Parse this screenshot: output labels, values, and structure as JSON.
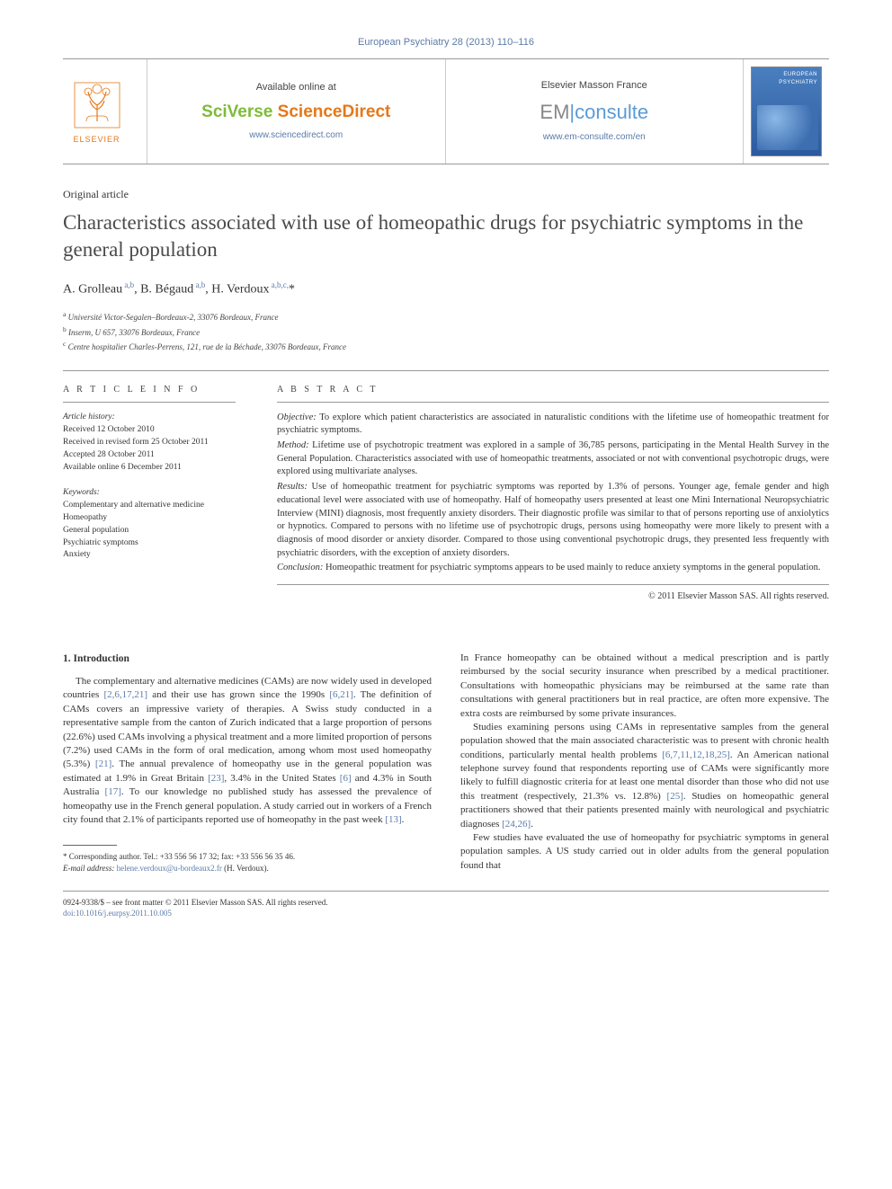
{
  "header": {
    "journal_citation": "European Psychiatry 28 (2013) 110–116"
  },
  "masthead": {
    "elsevier_label": "ELSEVIER",
    "left": {
      "avail": "Available online at",
      "brand_part1": "SciVerse ",
      "brand_part2": "ScienceDirect",
      "url": "www.sciencedirect.com"
    },
    "right": {
      "avail": "Elsevier Masson France",
      "brand_em": "EM",
      "brand_consulte": "consulte",
      "url": "www.em-consulte.com/en"
    },
    "cover_title": "EUROPEAN PSYCHIATRY"
  },
  "article": {
    "type": "Original article",
    "title": "Characteristics associated with use of homeopathic drugs for psychiatric symptoms in the general population",
    "authors_html": "A. Grolleau <sup>a,b</sup>, B. Bégaud <sup>a,b</sup>, H. Verdoux <sup>a,b,c,*</sup>",
    "affiliations": [
      "a Université Victor-Segalen–Bordeaux-2, 33076 Bordeaux, France",
      "b Inserm, U 657, 33076 Bordeaux, France",
      "c Centre hospitalier Charles-Perrens, 121, rue de la Béchade, 33076 Bordeaux, France"
    ]
  },
  "info": {
    "heading": "A R T I C L E   I N F O",
    "history_label": "Article history:",
    "history": [
      "Received 12 October 2010",
      "Received in revised form 25 October 2011",
      "Accepted 28 October 2011",
      "Available online 6 December 2011"
    ],
    "keywords_label": "Keywords:",
    "keywords": [
      "Complementary and alternative medicine",
      "Homeopathy",
      "General population",
      "Psychiatric symptoms",
      "Anxiety"
    ]
  },
  "abstract": {
    "heading": "A B S T R A C T",
    "sections": [
      {
        "label": "Objective:",
        "text": " To explore which patient characteristics are associated in naturalistic conditions with the lifetime use of homeopathic treatment for psychiatric symptoms."
      },
      {
        "label": "Method:",
        "text": " Lifetime use of psychotropic treatment was explored in a sample of 36,785 persons, participating in the Mental Health Survey in the General Population. Characteristics associated with use of homeopathic treatments, associated or not with conventional psychotropic drugs, were explored using multivariate analyses."
      },
      {
        "label": "Results:",
        "text": " Use of homeopathic treatment for psychiatric symptoms was reported by 1.3% of persons. Younger age, female gender and high educational level were associated with use of homeopathy. Half of homeopathy users presented at least one Mini International Neuropsychiatric Interview (MINI) diagnosis, most frequently anxiety disorders. Their diagnostic profile was similar to that of persons reporting use of anxiolytics or hypnotics. Compared to persons with no lifetime use of psychotropic drugs, persons using homeopathy were more likely to present with a diagnosis of mood disorder or anxiety disorder. Compared to those using conventional psychotropic drugs, they presented less frequently with psychiatric disorders, with the exception of anxiety disorders."
      },
      {
        "label": "Conclusion:",
        "text": " Homeopathic treatment for psychiatric symptoms appears to be used mainly to reduce anxiety symptoms in the general population."
      }
    ],
    "copyright": "© 2011 Elsevier Masson SAS. All rights reserved."
  },
  "body": {
    "section_heading": "1. Introduction",
    "col1": {
      "p1a": "The complementary and alternative medicines (CAMs) are now widely used in developed countries ",
      "p1a_ref": "[2,6,17,21]",
      "p1b": " and their use has grown since the 1990s ",
      "p1b_ref": "[6,21]",
      "p1c": ". The definition of CAMs covers an impressive variety of therapies. A Swiss study conducted in a representative sample from the canton of Zurich indicated that a large proportion of persons (22.6%) used CAMs involving a physical treatment and a more limited proportion of persons (7.2%) used CAMs in the form of oral medication, among whom most used homeopathy (5.3%) ",
      "p1c_ref": "[21]",
      "p1d": ". The annual prevalence of homeopathy use in the general population was estimated at 1.9% in Great Britain ",
      "p1d_ref": "[23]",
      "p1e": ", 3.4% in the United States ",
      "p1e_ref": "[6]",
      "p1f": " and 4.3% in South Australia ",
      "p1f_ref": "[17]",
      "p1g": ". To our knowledge no published study has assessed the prevalence of homeopathy use in the French general population. A study carried out in workers of a French city found that 2.1% of participants reported use of homeopathy in the past week ",
      "p1g_ref": "[13]",
      "p1h": "."
    },
    "col2": {
      "p1": "In France homeopathy can be obtained without a medical prescription and is partly reimbursed by the social security insurance when prescribed by a medical practitioner. Consultations with homeopathic physicians may be reimbursed at the same rate than consultations with general practitioners but in real practice, are often more expensive. The extra costs are reimbursed by some private insurances.",
      "p2a": "Studies examining persons using CAMs in representative samples from the general population showed that the main associated characteristic was to present with chronic health conditions, particularly mental health problems ",
      "p2a_ref": "[6,7,11,12,18,25]",
      "p2b": ". An American national telephone survey found that respondents reporting use of CAMs were significantly more likely to fulfill diagnostic criteria for at least one mental disorder than those who did not use this treatment (respectively, 21.3% vs. 12.8%) ",
      "p2b_ref": "[25]",
      "p2c": ". Studies on homeopathic general practitioners showed that their patients presented mainly with neurological and psychiatric diagnoses ",
      "p2c_ref": "[24,26]",
      "p2d": ".",
      "p3": "Few studies have evaluated the use of homeopathy for psychiatric symptoms in general population samples. A US study carried out in older adults from the general population found that"
    }
  },
  "footnote": {
    "corr": "* Corresponding author. Tel.: +33 556 56 17 32; fax: +33 556 56 35 46.",
    "email_label": "E-mail address:",
    "email": "helene.verdoux@u-bordeaux2.fr",
    "email_who": " (H. Verdoux)."
  },
  "footer": {
    "line1": "0924-9338/$ – see front matter © 2011 Elsevier Masson SAS. All rights reserved.",
    "doi": "doi:10.1016/j.eurpsy.2011.10.005"
  },
  "colors": {
    "link": "#5b7ba8",
    "orange": "#e67817",
    "green": "#7fbb3a",
    "blue": "#5b9bd5"
  }
}
